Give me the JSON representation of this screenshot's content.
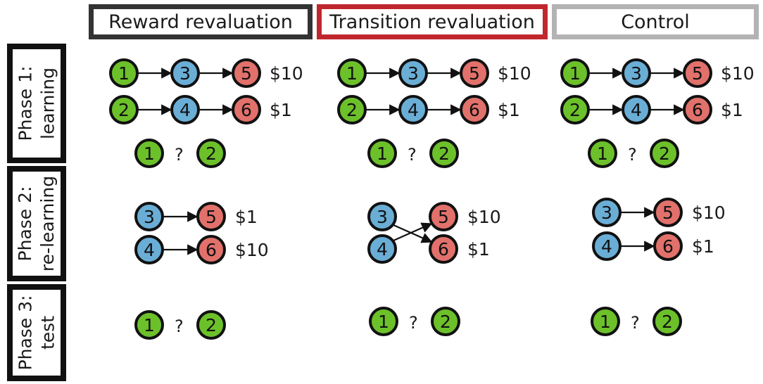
{
  "columns": [
    {
      "title": "Reward revaluation",
      "border_color": "#333333"
    },
    {
      "title": "Transition revaluation",
      "border_color": "#c0272d"
    },
    {
      "title": "Control",
      "border_color": "#b3b3b3"
    }
  ],
  "phases": [
    {
      "line1": "Phase 1:",
      "line2": "learning"
    },
    {
      "line1": "Phase 2:",
      "line2": "re-learning"
    },
    {
      "line1": "Phase 3:",
      "line2": "test"
    }
  ],
  "colors": {
    "start_state": "#6cc12a",
    "middle_state": "#6aaed6",
    "terminal_state": "#e2716b",
    "outline": "#111111",
    "arrow": "#111111"
  },
  "learning_chains": [
    {
      "states": [
        "1",
        "3",
        "5"
      ],
      "reward": "$10"
    },
    {
      "states": [
        "2",
        "4",
        "6"
      ],
      "reward": "$1"
    }
  ],
  "choice": {
    "left": "1",
    "question": "?",
    "right": "2"
  },
  "relearning": {
    "reward_revaluation": [
      {
        "from": "3",
        "to": "5",
        "reward": "$1"
      },
      {
        "from": "4",
        "to": "6",
        "reward": "$10"
      }
    ],
    "transition_revaluation": [
      {
        "from": "3",
        "to": "6"
      },
      {
        "from": "4",
        "to": "5"
      }
    ],
    "transition_rewards": [
      {
        "state": "5",
        "reward": "$10"
      },
      {
        "state": "6",
        "reward": "$1"
      }
    ],
    "control": [
      {
        "from": "3",
        "to": "5",
        "reward": "$10"
      },
      {
        "from": "4",
        "to": "6",
        "reward": "$1"
      }
    ]
  }
}
